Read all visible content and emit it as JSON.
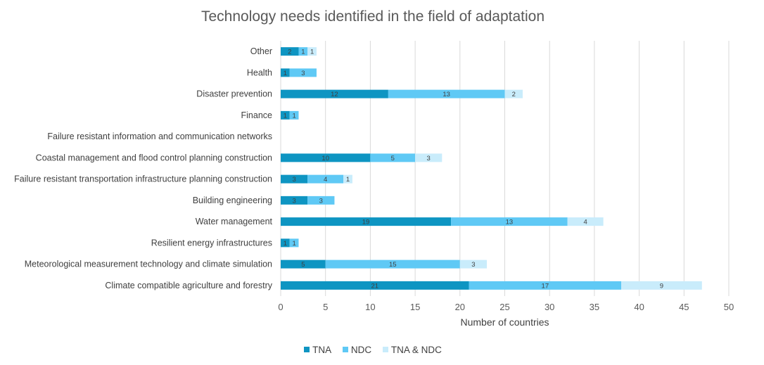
{
  "chart_data": {
    "type": "bar",
    "orientation": "horizontal",
    "stacked": true,
    "title": "Technology needs identified in the field of adaptation",
    "xlabel": "Number of countries",
    "ylabel": "",
    "xlim": [
      0,
      50
    ],
    "xticks": [
      0,
      5,
      10,
      15,
      20,
      25,
      30,
      35,
      40,
      45,
      50
    ],
    "grid": "vertical",
    "legend_position": "bottom",
    "categories": [
      "Other",
      "Health",
      "Disaster prevention",
      "Finance",
      "Failure resistant information and communication networks",
      "Coastal management and flood control planning construction",
      "Failure resistant transportation infrastructure planning construction",
      "Building engineering",
      "Water management",
      "Resilient energy infrastructures",
      "Meteorological measurement technology and climate simulation",
      "Climate compatible agriculture and forestry"
    ],
    "series": [
      {
        "name": "TNA",
        "color": "#0e95c2",
        "values": [
          2,
          1,
          12,
          1,
          0,
          10,
          3,
          3,
          19,
          1,
          5,
          21
        ]
      },
      {
        "name": "NDC",
        "color": "#5fc9f5",
        "values": [
          1,
          3,
          13,
          1,
          0,
          5,
          4,
          3,
          13,
          1,
          15,
          17
        ]
      },
      {
        "name": "TNA & NDC",
        "color": "#c9ecfb",
        "values": [
          1,
          0,
          2,
          0,
          0,
          3,
          1,
          0,
          4,
          0,
          3,
          9
        ]
      }
    ]
  }
}
